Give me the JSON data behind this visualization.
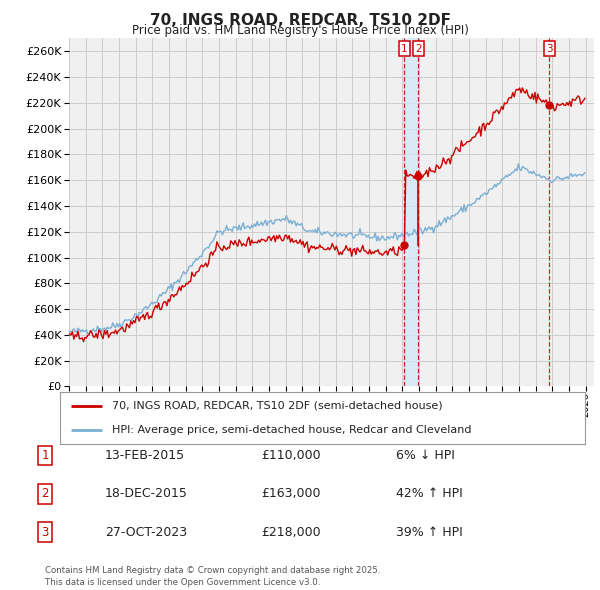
{
  "title": "70, INGS ROAD, REDCAR, TS10 2DF",
  "subtitle": "Price paid vs. HM Land Registry's House Price Index (HPI)",
  "ylim": [
    0,
    270000
  ],
  "yticks": [
    0,
    20000,
    40000,
    60000,
    80000,
    100000,
    120000,
    140000,
    160000,
    180000,
    200000,
    220000,
    240000,
    260000
  ],
  "sale_color": "#cc0000",
  "hpi_color": "#7ab0d4",
  "grid_color": "#cccccc",
  "bg_color": "#ffffff",
  "plot_bg_color": "#f0f0f0",
  "legend_sale_label": "70, INGS ROAD, REDCAR, TS10 2DF (semi-detached house)",
  "legend_hpi_label": "HPI: Average price, semi-detached house, Redcar and Cleveland",
  "footnote": "Contains HM Land Registry data © Crown copyright and database right 2025.\nThis data is licensed under the Open Government Licence v3.0.",
  "table_rows": [
    {
      "num": "1",
      "date": "13-FEB-2015",
      "price": "£110,000",
      "pct": "6% ↓ HPI"
    },
    {
      "num": "2",
      "date": "18-DEC-2015",
      "price": "£163,000",
      "pct": "42% ↑ HPI"
    },
    {
      "num": "3",
      "date": "27-OCT-2023",
      "price": "£218,000",
      "pct": "39% ↑ HPI"
    }
  ],
  "sale_dates_decimal": [
    2015.12,
    2015.96,
    2023.83
  ],
  "sale_prices": [
    110000,
    163000,
    218000
  ],
  "sale_labels": [
    "1",
    "2",
    "3"
  ]
}
